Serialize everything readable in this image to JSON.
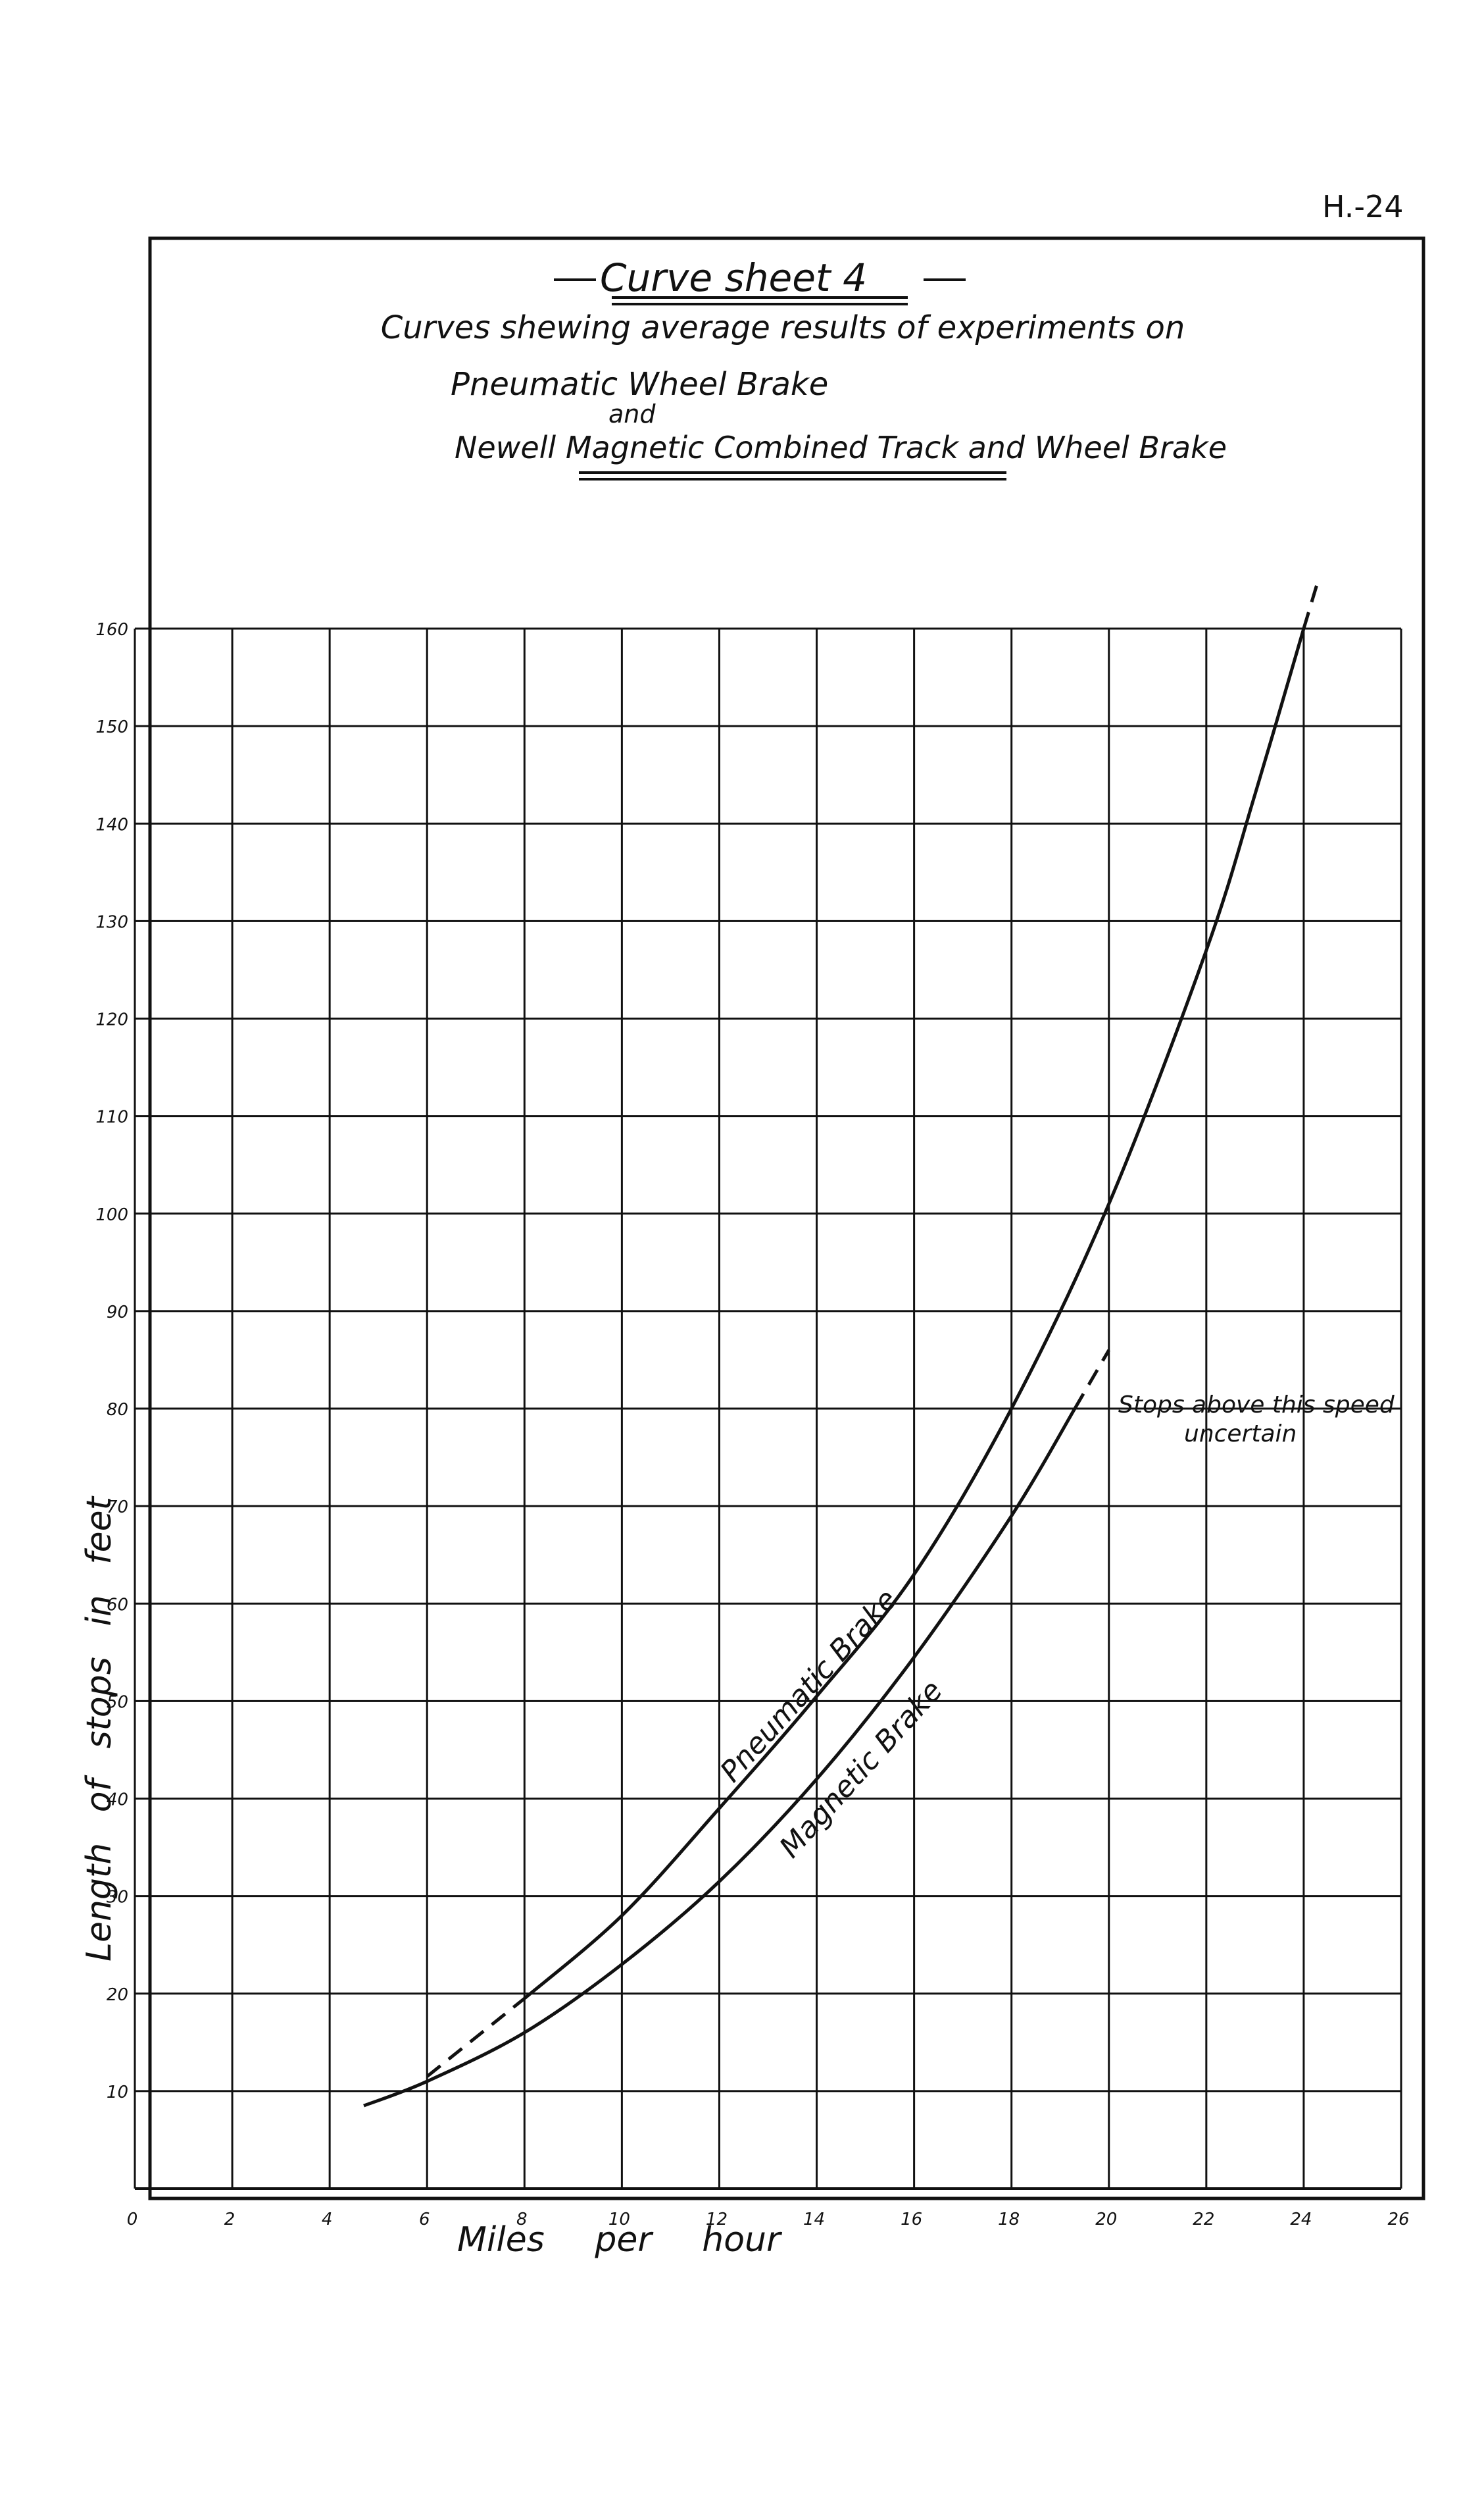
{
  "page": {
    "sheet_id": "H.-24"
  },
  "header": {
    "title": "Curve sheet 4",
    "subtitle": "Curves shewing average results of experiments on",
    "brake_line_1": "Pneumatic Wheel Brake",
    "connector": "and",
    "brake_line_2": "Newell Magnetic Combined Track and Wheel Brake"
  },
  "chart_data": {
    "type": "line",
    "title": "Curve sheet 4",
    "xlabel": "Miles per hour",
    "ylabel": "Length of stops in feet",
    "xlim": [
      0,
      26
    ],
    "ylim": [
      0,
      160
    ],
    "x_ticks": [
      0,
      2,
      4,
      6,
      8,
      10,
      12,
      14,
      16,
      18,
      20,
      22,
      24,
      26
    ],
    "y_ticks": [
      10,
      20,
      30,
      40,
      50,
      60,
      70,
      80,
      90,
      100,
      110,
      120,
      130,
      140,
      150,
      160
    ],
    "grid": true,
    "series": [
      {
        "name": "Pneumatic Brake",
        "color": "#111111",
        "x": [
          6,
          8,
          10,
          12,
          14,
          16,
          18,
          20,
          22,
          23,
          24
        ],
        "y": [
          11.5,
          19.5,
          28,
          39,
          50.5,
          63,
          80,
          101,
          127,
          143,
          160
        ],
        "dashed_segments": [
          {
            "x": [
              6,
              8
            ],
            "y": [
              11.5,
              19.5
            ]
          },
          {
            "x": [
              24,
              24.3
            ],
            "y": [
              160,
              165
            ]
          }
        ]
      },
      {
        "name": "Magnetic Brake",
        "color": "#111111",
        "x": [
          4.7,
          6,
          8,
          10,
          12,
          14,
          16,
          18,
          19.3
        ],
        "y": [
          8.5,
          11,
          16,
          23,
          31.5,
          42,
          54.5,
          69,
          80
        ],
        "dashed_segments": [
          {
            "x": [
              19.3,
              20
            ],
            "y": [
              80,
              86
            ]
          }
        ]
      }
    ],
    "annotations": [
      {
        "text": "Stops above this speed uncertain",
        "x": 20.1,
        "y": 81
      }
    ]
  }
}
